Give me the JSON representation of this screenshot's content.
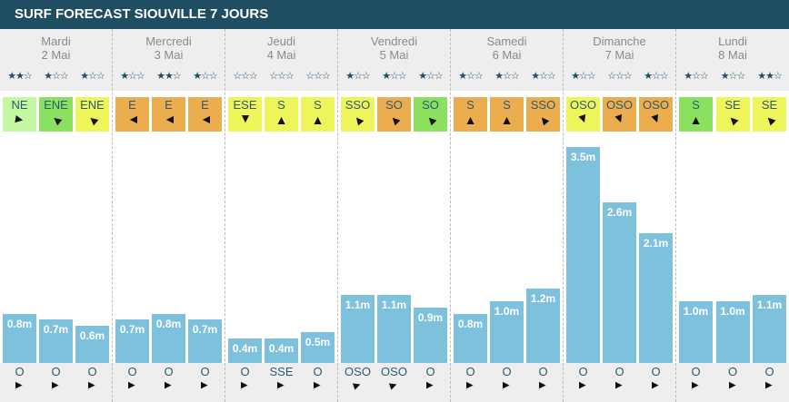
{
  "title": "SURF FORECAST SIOUVILLE 7 JOURS",
  "colors": {
    "header": "#1f4d62",
    "bar": "#7dc1dc",
    "light_green": "#c3f7a1",
    "green": "#8ce060",
    "yellow": "#eef55a",
    "orange": "#ecad4e"
  },
  "days": [
    {
      "name": "Mardi",
      "date": "2 Mai",
      "slots": [
        {
          "stars": 2,
          "wind": "NE",
          "wind_color": "light_green",
          "wave": 0.8,
          "wave_label": "0.8m",
          "swell": "O"
        },
        {
          "stars": 1,
          "wind": "ENE",
          "wind_color": "green",
          "wave": 0.7,
          "wave_label": "0.7m",
          "swell": "O"
        },
        {
          "stars": 1,
          "wind": "ENE",
          "wind_color": "yellow",
          "wave": 0.6,
          "wave_label": "0.6m",
          "swell": "O"
        }
      ]
    },
    {
      "name": "Mercredi",
      "date": "3 Mai",
      "slots": [
        {
          "stars": 1,
          "wind": "E",
          "wind_color": "orange",
          "wave": 0.7,
          "wave_label": "0.7m",
          "swell": "O"
        },
        {
          "stars": 2,
          "wind": "E",
          "wind_color": "orange",
          "wave": 0.8,
          "wave_label": "0.8m",
          "swell": "O"
        },
        {
          "stars": 1,
          "wind": "E",
          "wind_color": "orange",
          "wave": 0.7,
          "wave_label": "0.7m",
          "swell": "O"
        }
      ]
    },
    {
      "name": "Jeudi",
      "date": "4 Mai",
      "slots": [
        {
          "stars": 0,
          "wind": "ESE",
          "wind_color": "yellow",
          "wave": 0.4,
          "wave_label": "0.4m",
          "swell": "O"
        },
        {
          "stars": 0,
          "wind": "S",
          "wind_color": "yellow",
          "wave": 0.4,
          "wave_label": "0.4m",
          "swell": "SSE"
        },
        {
          "stars": 0,
          "wind": "S",
          "wind_color": "yellow",
          "wave": 0.5,
          "wave_label": "0.5m",
          "swell": "O"
        }
      ]
    },
    {
      "name": "Vendredi",
      "date": "5 Mai",
      "slots": [
        {
          "stars": 1,
          "wind": "SSO",
          "wind_color": "yellow",
          "wave": 1.1,
          "wave_label": "1.1m",
          "swell": "OSO"
        },
        {
          "stars": 1,
          "wind": "SO",
          "wind_color": "orange",
          "wave": 1.1,
          "wave_label": "1.1m",
          "swell": "OSO"
        },
        {
          "stars": 1,
          "wind": "SO",
          "wind_color": "green",
          "wave": 0.9,
          "wave_label": "0.9m",
          "swell": "O"
        }
      ]
    },
    {
      "name": "Samedi",
      "date": "6 Mai",
      "slots": [
        {
          "stars": 1,
          "wind": "S",
          "wind_color": "orange",
          "wave": 0.8,
          "wave_label": "0.8m",
          "swell": "O"
        },
        {
          "stars": 1,
          "wind": "S",
          "wind_color": "orange",
          "wave": 1.0,
          "wave_label": "1.0m",
          "swell": "O"
        },
        {
          "stars": 1,
          "wind": "SSO",
          "wind_color": "orange",
          "wave": 1.2,
          "wave_label": "1.2m",
          "swell": "O"
        }
      ]
    },
    {
      "name": "Dimanche",
      "date": "7 Mai",
      "slots": [
        {
          "stars": 1,
          "wind": "OSO",
          "wind_color": "yellow",
          "wave": 3.5,
          "wave_label": "3.5m",
          "swell": "O"
        },
        {
          "stars": 0,
          "wind": "OSO",
          "wind_color": "orange",
          "wave": 2.6,
          "wave_label": "2.6m",
          "swell": "O"
        },
        {
          "stars": 1,
          "wind": "OSO",
          "wind_color": "orange",
          "wave": 2.1,
          "wave_label": "2.1m",
          "swell": "O"
        }
      ]
    },
    {
      "name": "Lundi",
      "date": "8 Mai",
      "slots": [
        {
          "stars": 1,
          "wind": "S",
          "wind_color": "green",
          "wave": 1.0,
          "wave_label": "1.0m",
          "swell": "O"
        },
        {
          "stars": 1,
          "wind": "SE",
          "wind_color": "yellow",
          "wave": 1.0,
          "wave_label": "1.0m",
          "swell": "O"
        },
        {
          "stars": 2,
          "wind": "SE",
          "wind_color": "yellow",
          "wave": 1.1,
          "wave_label": "1.1m",
          "swell": "O"
        }
      ]
    }
  ]
}
